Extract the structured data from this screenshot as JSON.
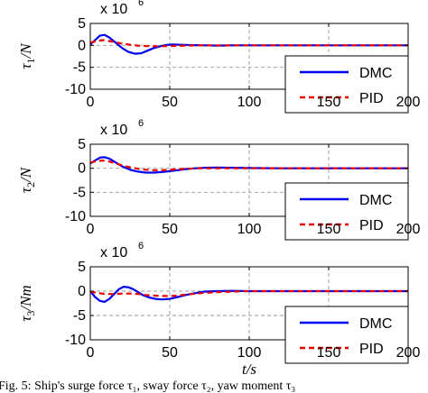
{
  "chart_data": [
    {
      "type": "line",
      "ylabel_symbol": "τ",
      "ylabel_sub": "1",
      "ylabel_unit": "/N",
      "xlabel": "",
      "exponent_base": "x 10",
      "exponent_power": "6",
      "xlim": [
        0,
        200
      ],
      "ylim": [
        -10,
        5
      ],
      "xticks": [
        0,
        50,
        100,
        150,
        200
      ],
      "yticks": [
        -10,
        -5,
        0,
        5
      ],
      "grid": true,
      "legend_position": "lower-right",
      "series": [
        {
          "name": "DMC",
          "color": "#0000ee",
          "x": [
            0,
            3,
            6,
            9,
            12,
            16,
            20,
            24,
            28,
            32,
            36,
            40,
            44,
            48,
            52,
            56,
            60,
            66,
            72,
            80,
            90,
            100,
            120,
            140,
            160,
            180,
            200
          ],
          "y": [
            0.2,
            1.2,
            2.2,
            2.4,
            1.8,
            0.6,
            -0.6,
            -1.5,
            -1.9,
            -1.8,
            -1.2,
            -0.6,
            -0.2,
            0.1,
            0.2,
            0.15,
            0.1,
            0.05,
            0.0,
            -0.05,
            0.0,
            0.0,
            0.0,
            0.0,
            0.0,
            0.0,
            0.0
          ]
        },
        {
          "name": "PID",
          "color": "#ee0000",
          "x": [
            0,
            4,
            8,
            12,
            16,
            20,
            25,
            30,
            35,
            40,
            45,
            50,
            55,
            60,
            70,
            80,
            100,
            120,
            150,
            200
          ],
          "y": [
            0.6,
            1.0,
            1.2,
            1.0,
            0.7,
            0.4,
            0.15,
            -0.05,
            -0.15,
            -0.2,
            -0.2,
            -0.15,
            -0.1,
            -0.05,
            0.0,
            0.0,
            0.0,
            0.0,
            0.0,
            0.0
          ]
        }
      ]
    },
    {
      "type": "line",
      "ylabel_symbol": "τ",
      "ylabel_sub": "2",
      "ylabel_unit": "/N",
      "xlabel": "",
      "exponent_base": "x 10",
      "exponent_power": "6",
      "xlim": [
        0,
        200
      ],
      "ylim": [
        -10,
        5
      ],
      "xticks": [
        0,
        50,
        100,
        150,
        200
      ],
      "yticks": [
        -10,
        -5,
        0,
        5
      ],
      "grid": true,
      "legend_position": "lower-right",
      "series": [
        {
          "name": "DMC",
          "color": "#0000ee",
          "x": [
            0,
            3,
            6,
            9,
            12,
            16,
            20,
            25,
            30,
            35,
            40,
            45,
            50,
            55,
            60,
            66,
            72,
            80,
            90,
            100,
            120,
            140,
            160,
            180,
            200
          ],
          "y": [
            1.0,
            1.6,
            2.2,
            2.3,
            2.0,
            1.2,
            0.4,
            -0.3,
            -0.7,
            -0.9,
            -0.9,
            -0.8,
            -0.6,
            -0.4,
            -0.2,
            0.0,
            0.1,
            0.15,
            0.1,
            0.05,
            0.0,
            0.0,
            0.0,
            0.0,
            0.0
          ]
        },
        {
          "name": "PID",
          "color": "#ee0000",
          "x": [
            0,
            4,
            8,
            12,
            16,
            20,
            25,
            30,
            35,
            40,
            45,
            50,
            55,
            60,
            70,
            80,
            100,
            120,
            150,
            200
          ],
          "y": [
            1.2,
            1.5,
            1.6,
            1.4,
            1.0,
            0.6,
            0.2,
            -0.1,
            -0.3,
            -0.4,
            -0.4,
            -0.3,
            -0.2,
            -0.1,
            0.0,
            0.0,
            0.0,
            0.0,
            0.0,
            0.0
          ]
        }
      ]
    },
    {
      "type": "line",
      "ylabel_symbol": "τ",
      "ylabel_sub": "3",
      "ylabel_unit": "/Nm",
      "xlabel": "t/s",
      "exponent_base": "x 10",
      "exponent_power": "6",
      "xlim": [
        0,
        200
      ],
      "ylim": [
        -10,
        5
      ],
      "xticks": [
        0,
        50,
        100,
        150,
        200
      ],
      "yticks": [
        -10,
        -5,
        0,
        5
      ],
      "grid": true,
      "legend_position": "lower-right",
      "series": [
        {
          "name": "DMC",
          "color": "#0000ee",
          "x": [
            0,
            3,
            6,
            9,
            12,
            15,
            18,
            21,
            24,
            27,
            30,
            33,
            37,
            41,
            45,
            50,
            55,
            60,
            66,
            72,
            80,
            90,
            100,
            110,
            120,
            140,
            160,
            180,
            200
          ],
          "y": [
            0.0,
            -1.2,
            -2.0,
            -2.2,
            -1.6,
            -0.6,
            0.4,
            0.9,
            0.8,
            0.4,
            -0.2,
            -0.8,
            -1.3,
            -1.6,
            -1.7,
            -1.6,
            -1.2,
            -0.8,
            -0.4,
            -0.1,
            0.0,
            0.05,
            0.0,
            0.0,
            0.0,
            0.0,
            0.0,
            0.0,
            0.0
          ]
        },
        {
          "name": "PID",
          "color": "#ee0000",
          "x": [
            0,
            5,
            10,
            15,
            20,
            25,
            30,
            35,
            40,
            45,
            50,
            55,
            60,
            70,
            80,
            90,
            100,
            120,
            150,
            200
          ],
          "y": [
            -0.1,
            -0.4,
            -0.6,
            -0.6,
            -0.5,
            -0.5,
            -0.6,
            -0.8,
            -0.9,
            -1.0,
            -1.0,
            -0.9,
            -0.7,
            -0.4,
            -0.2,
            -0.1,
            0.0,
            0.0,
            0.0,
            0.0
          ]
        }
      ]
    }
  ],
  "caption": "Fig. 5: Ship's surge force τ₁, sway force τ₂, yaw moment τ₃"
}
